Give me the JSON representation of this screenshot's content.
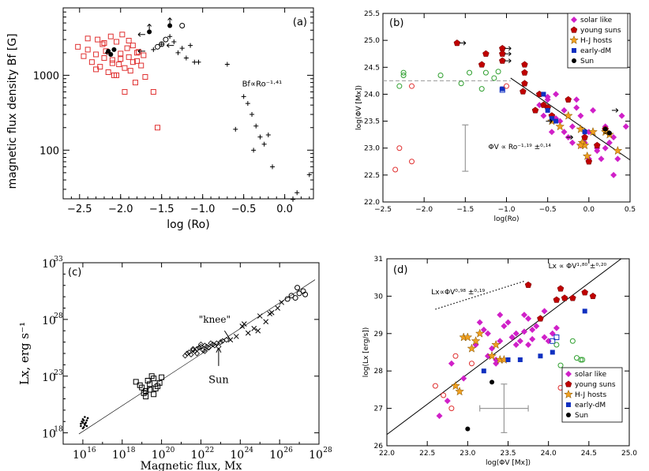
{
  "colors": {
    "red": "#e03030",
    "green": "#30a030",
    "magenta": "#d020c8",
    "darkred": "#c00000",
    "orange": "#f0a020",
    "blue": "#1030c0",
    "black": "#000000",
    "gray": "#999999"
  },
  "chart_data": [
    {
      "id": "a",
      "type": "scatter",
      "panel_label": "(a)",
      "xlabel": "log (Ro)",
      "ylabel": "magnetic flux density  Bf  [G]",
      "xlim": [
        -2.7,
        0.35
      ],
      "ylim_log": [
        1.35,
        3.9
      ],
      "xticks": [
        -2.5,
        -2.0,
        -1.5,
        -1.0,
        -0.5,
        0.0
      ],
      "xtick_labels": [
        "−2.5",
        "−2.0",
        "−1.5",
        "−1.0",
        "−0.5",
        "0.0"
      ],
      "yticks": [
        100,
        1000
      ],
      "ytick_labels": [
        "100",
        "1000"
      ],
      "annotation": "Bf∝Ro⁻¹·⁴¹",
      "series": [
        {
          "name": "red squares",
          "marker": "square-open",
          "color": "red",
          "x": [
            -2.52,
            -2.45,
            -2.4,
            -2.35,
            -2.3,
            -2.28,
            -2.25,
            -2.22,
            -2.2,
            -2.18,
            -2.15,
            -2.12,
            -2.1,
            -2.08,
            -2.05,
            -2.02,
            -2.0,
            -1.98,
            -1.95,
            -1.92,
            -1.9,
            -1.88,
            -1.85,
            -1.82,
            -1.8,
            -1.78,
            -1.75,
            -1.72,
            -1.7,
            -2.4,
            -2.3,
            -2.2,
            -2.1,
            -2.0,
            -1.9,
            -1.8,
            -1.6,
            -1.55,
            -1.95,
            -2.05,
            -1.85
          ],
          "y": [
            2400,
            1800,
            2200,
            1500,
            1900,
            3000,
            1300,
            2600,
            1700,
            2100,
            1100,
            3300,
            1600,
            1000,
            2800,
            1400,
            1950,
            3500,
            1250,
            2300,
            1750,
            1150,
            2500,
            800,
            1550,
            2050,
            1350,
            1850,
            950,
            3100,
            1200,
            2700,
            1450,
            1650,
            2900,
            2000,
            600,
            200,
            600,
            1000,
            1500
          ]
        },
        {
          "name": "black dots",
          "marker": "dot",
          "color": "black",
          "x": [
            -2.15,
            -2.12,
            -2.08,
            -1.65,
            -1.4
          ],
          "y": [
            2100,
            1900,
            2200,
            3800,
            4600
          ]
        },
        {
          "name": "open circles",
          "marker": "circle-open",
          "color": "black",
          "x": [
            -1.55,
            -1.45,
            -1.25,
            -1.5
          ],
          "y": [
            2400,
            3000,
            4600,
            2600
          ]
        },
        {
          "name": "plus",
          "marker": "plus",
          "color": "black",
          "x": [
            -1.6,
            -1.5,
            -1.4,
            -1.35,
            -1.3,
            -1.25,
            -1.2,
            -1.15,
            -1.1,
            -1.05,
            -0.7,
            -0.5,
            -0.45,
            -0.4,
            -0.35,
            -0.3,
            -0.25,
            -0.2,
            -0.15,
            0.1,
            0.15,
            0.3,
            -0.6,
            -0.38
          ],
          "y": [
            2200,
            2600,
            3300,
            2800,
            2000,
            2300,
            1700,
            2500,
            1500,
            1500,
            1400,
            520,
            420,
            300,
            210,
            150,
            120,
            160,
            60,
            22,
            27,
            47,
            190,
            100
          ]
        }
      ]
    },
    {
      "id": "b",
      "type": "scatter",
      "panel_label": "(b)",
      "xlabel": "log(Ro)",
      "ylabel": "log(ΦV [Mx])",
      "xlim": [
        -2.5,
        0.5
      ],
      "ylim": [
        22.0,
        25.5
      ],
      "xticks": [
        -2.5,
        -2.0,
        -1.5,
        -1.0,
        -0.5,
        0.0,
        0.5
      ],
      "xtick_labels": [
        "−2.5",
        "−2.0",
        "−1.5",
        "−1.0",
        "−0.5",
        "0.0",
        "0.5"
      ],
      "yticks": [
        22.0,
        22.5,
        23.0,
        23.5,
        24.0,
        24.5,
        25.0,
        25.5
      ],
      "ytick_labels": [
        "22.0",
        "22.5",
        "23.0",
        "23.5",
        "24.0",
        "24.5",
        "25.0",
        "25.5"
      ],
      "annotation": "ΦV ∝ Ro⁻¹·¹⁹ ±⁰·¹⁴",
      "legend": [
        "solar like",
        "young suns",
        "H-J hosts",
        "early-dM",
        "Sun"
      ],
      "saturation_level": 24.25,
      "fit_line": {
        "x": [
          -0.95,
          0.5
        ],
        "y": [
          24.3,
          22.78
        ]
      },
      "error_bar": {
        "x": -1.5,
        "y_low": 22.57,
        "y_high": 23.43
      },
      "series": [
        {
          "name": "solar like",
          "marker": "diamond",
          "color": "magenta",
          "x": [
            -0.6,
            -0.55,
            -0.5,
            -0.45,
            -0.4,
            -0.35,
            -0.3,
            -0.25,
            -0.2,
            -0.15,
            -0.1,
            -0.05,
            0.0,
            0.05,
            0.1,
            0.15,
            0.2,
            0.25,
            0.3,
            0.35,
            0.4,
            0.45,
            -0.5,
            -0.3,
            -0.1,
            0.1,
            0.3,
            -0.2,
            0.0,
            0.2,
            -0.4,
            -0.15
          ],
          "y": [
            23.8,
            23.6,
            23.9,
            23.3,
            24.0,
            23.5,
            23.7,
            23.2,
            23.4,
            23.9,
            23.6,
            23.1,
            23.3,
            23.7,
            23.0,
            22.8,
            23.4,
            23.1,
            23.2,
            22.8,
            23.6,
            23.4,
            23.95,
            23.3,
            23.05,
            22.95,
            22.5,
            23.1,
            22.8,
            23.0,
            23.55,
            23.75
          ]
        },
        {
          "name": "young suns",
          "marker": "pentagon",
          "color": "darkred",
          "x": [
            -1.6,
            -1.25,
            -1.05,
            -1.05,
            -1.05,
            -0.78,
            -0.78,
            -0.78,
            -0.6,
            -0.55,
            -0.5,
            -0.45,
            0.2,
            0.1,
            -0.25,
            -0.05,
            -1.3,
            -0.8,
            -0.65,
            0.0
          ],
          "y": [
            24.95,
            24.75,
            24.85,
            24.75,
            24.62,
            24.55,
            24.4,
            24.2,
            24.0,
            23.8,
            23.75,
            23.6,
            23.35,
            23.05,
            23.9,
            23.2,
            24.55,
            24.05,
            23.7,
            22.75
          ]
        },
        {
          "name": "H-J hosts",
          "marker": "star",
          "color": "orange",
          "x": [
            -0.45,
            -0.35,
            -0.1,
            -0.08,
            -0.05,
            -0.02,
            0.05,
            0.2,
            0.25,
            0.35,
            -0.25,
            -0.1
          ],
          "y": [
            23.5,
            23.4,
            23.35,
            23.1,
            23.05,
            22.85,
            23.3,
            23.3,
            23.25,
            22.95,
            23.6,
            23.05
          ]
        },
        {
          "name": "early-dM",
          "marker": "square",
          "color": "blue",
          "x": [
            -1.05,
            -0.55,
            -0.5,
            -0.45,
            -0.4,
            -0.05
          ],
          "y": [
            24.1,
            24.0,
            23.7,
            23.55,
            23.5,
            23.3
          ]
        },
        {
          "name": "early-dM open",
          "marker": "square-open",
          "color": "blue",
          "x": [
            -1.05
          ],
          "y": [
            24.08
          ]
        },
        {
          "name": "Sun",
          "marker": "dot",
          "color": "black",
          "x": [
            0.2,
            0.25
          ],
          "y": [
            23.35,
            23.28
          ]
        },
        {
          "name": "green circles",
          "marker": "circle-open",
          "color": "green",
          "x": [
            -2.3,
            -2.25,
            -2.25,
            -1.8,
            -1.55,
            -1.45,
            -1.25,
            -1.15,
            -1.3,
            -1.1
          ],
          "y": [
            24.15,
            24.4,
            24.35,
            24.35,
            24.2,
            24.4,
            24.4,
            24.3,
            24.1,
            24.42
          ]
        },
        {
          "name": "red circles",
          "marker": "circle-open",
          "color": "red",
          "x": [
            -2.35,
            -2.3,
            -2.15,
            -2.15,
            -1.0
          ],
          "y": [
            22.6,
            23.0,
            22.75,
            24.15,
            24.15
          ]
        }
      ]
    },
    {
      "id": "c",
      "type": "scatter",
      "panel_label": "(c)",
      "xlabel": "Magnetic flux, Mx",
      "ylabel": "Lx, erg s⁻¹",
      "xlim_log": [
        15,
        28
      ],
      "ylim_log": [
        17,
        33
      ],
      "xticks_log": [
        16,
        18,
        20,
        22,
        24,
        26,
        28
      ],
      "yticks_log": [
        18,
        23,
        28,
        33
      ],
      "tick_base": "10",
      "annotations": [
        "\"knee\"",
        "Sun"
      ],
      "fit_line": {
        "x_log": [
          15.8,
          27.8
        ],
        "y_log": [
          17.9,
          31.5
        ]
      },
      "series": [
        {
          "name": "dots cluster",
          "marker": "dot-small",
          "color": "black",
          "x_log": [
            15.9,
            16.0,
            16.1,
            16.2,
            16.0,
            16.1,
            15.95,
            16.05,
            16.15,
            16.25,
            16.0,
            16.1,
            16.2,
            16.05,
            15.9
          ],
          "y_log": [
            18.6,
            18.9,
            18.8,
            19.1,
            19.2,
            18.7,
            19.0,
            18.5,
            18.9,
            19.3,
            18.4,
            19.4,
            18.6,
            19.1,
            18.8
          ]
        },
        {
          "name": "squares",
          "marker": "square-open",
          "color": "black",
          "x_log": [
            18.7,
            19.0,
            19.2,
            19.4,
            19.6,
            19.8,
            20.0,
            19.1,
            19.3,
            19.5,
            19.7,
            19.9,
            19.2,
            19.4,
            18.9,
            19.6
          ],
          "y_log": [
            22.5,
            22.0,
            21.7,
            22.3,
            22.8,
            22.1,
            22.9,
            21.5,
            22.6,
            23.0,
            21.9,
            22.4,
            21.2,
            21.8,
            22.2,
            21.4
          ]
        },
        {
          "name": "diamonds",
          "marker": "diamond-open",
          "color": "black",
          "x_log": [
            21.2,
            21.4,
            21.6,
            21.8,
            22.0,
            22.2,
            22.4,
            22.6,
            22.8,
            23.0,
            21.5,
            21.7,
            21.9,
            22.1,
            22.3,
            22.5,
            22.7,
            22.9,
            23.1,
            23.3,
            21.3,
            21.6,
            21.8,
            22.0,
            22.2
          ],
          "y_log": [
            24.8,
            25.1,
            25.3,
            25.4,
            25.6,
            25.7,
            25.5,
            25.8,
            25.9,
            26.0,
            24.9,
            25.2,
            25.5,
            25.3,
            25.6,
            25.9,
            25.7,
            25.6,
            26.1,
            26.2,
            25.0,
            25.4,
            25.0,
            25.8,
            25.2
          ]
        },
        {
          "name": "crosses",
          "marker": "x",
          "color": "black",
          "x_log": [
            23.5,
            23.8,
            24.1,
            24.4,
            24.7,
            25.0,
            25.3,
            25.6,
            25.9,
            26.1,
            24.2,
            24.9,
            25.5
          ],
          "y_log": [
            26.2,
            26.5,
            27.4,
            26.8,
            27.2,
            28.3,
            27.8,
            28.6,
            29.0,
            29.5,
            27.6,
            27.0,
            28.5
          ]
        },
        {
          "name": "circles",
          "marker": "circle-open",
          "color": "black",
          "x_log": [
            26.4,
            26.6,
            26.8,
            27.0,
            27.2,
            27.3,
            26.9
          ],
          "y_log": [
            29.8,
            30.1,
            29.9,
            30.3,
            30.5,
            30.2,
            30.8
          ]
        }
      ]
    },
    {
      "id": "d",
      "type": "scatter",
      "panel_label": "(d)",
      "xlabel": "log(ΦV [Mx])",
      "ylabel": "log(Lx [erg/s])",
      "xlim": [
        22.0,
        25.0
      ],
      "ylim": [
        26.0,
        31.0
      ],
      "xticks": [
        22.0,
        22.5,
        23.0,
        23.5,
        24.0,
        24.5,
        25.0
      ],
      "xtick_labels": [
        "22.0",
        "22.5",
        "23.0",
        "23.5",
        "24.0",
        "24.5",
        "25.0"
      ],
      "yticks": [
        26,
        27,
        28,
        29,
        30,
        31
      ],
      "ytick_labels": [
        "26",
        "27",
        "28",
        "29",
        "30",
        "31"
      ],
      "annotations": [
        "Lx ∝ ΦV¹·⁸⁰ ±⁰·²⁰",
        "Lx∝ΦV⁰·⁹⁸ ±⁰·¹⁹"
      ],
      "legend": [
        "solar like",
        "young suns",
        "H-J hosts",
        "early-dM",
        "Sun"
      ],
      "fit_line": {
        "x": [
          22.0,
          24.9
        ],
        "y": [
          26.3,
          31.0
        ]
      },
      "dotted_line": {
        "x": [
          22.6,
          23.7
        ],
        "y": [
          29.65,
          30.4
        ]
      },
      "error_bar": {
        "x": 23.45,
        "y": 27.0,
        "x_low": 23.15,
        "x_high": 23.75,
        "y_low": 26.35,
        "y_high": 27.65
      },
      "series": [
        {
          "name": "solar like",
          "marker": "diamond",
          "color": "magenta",
          "x": [
            22.65,
            22.75,
            22.8,
            22.95,
            23.1,
            23.2,
            23.25,
            23.3,
            23.35,
            23.4,
            23.45,
            23.5,
            23.55,
            23.6,
            23.65,
            23.7,
            23.75,
            23.8,
            23.85,
            23.9,
            23.95,
            24.0,
            24.05,
            23.15,
            23.35,
            23.55,
            23.75,
            23.95,
            23.4,
            23.6,
            23.8,
            24.1,
            23.25,
            23.7
          ],
          "y": [
            26.8,
            27.2,
            28.2,
            27.8,
            28.7,
            29.1,
            29.0,
            28.6,
            28.3,
            28.8,
            29.2,
            29.3,
            28.9,
            29.0,
            28.8,
            29.5,
            28.7,
            29.1,
            29.2,
            29.4,
            28.9,
            28.8,
            29.0,
            29.3,
            28.2,
            28.9,
            29.4,
            29.6,
            29.5,
            28.7,
            28.85,
            29.15,
            28.4,
            29.05
          ]
        },
        {
          "name": "young suns",
          "marker": "pentagon",
          "color": "darkred",
          "x": [
            23.75,
            24.1,
            24.15,
            24.2,
            24.3,
            24.45,
            24.55,
            23.9
          ],
          "y": [
            30.3,
            29.9,
            30.2,
            29.95,
            29.95,
            30.1,
            30.0,
            29.4
          ]
        },
        {
          "name": "H-J hosts",
          "marker": "star",
          "color": "orange",
          "x": [
            22.85,
            22.9,
            22.95,
            23.0,
            23.05,
            23.1,
            23.15,
            23.3,
            23.35,
            23.4,
            23.45
          ],
          "y": [
            27.6,
            27.45,
            28.9,
            28.9,
            28.6,
            28.8,
            29.0,
            28.4,
            28.7,
            28.3,
            28.3
          ]
        },
        {
          "name": "early-dM",
          "marker": "square",
          "color": "blue",
          "x": [
            23.5,
            23.65,
            23.9,
            24.05,
            24.45,
            23.2
          ],
          "y": [
            28.3,
            28.3,
            28.4,
            28.5,
            29.6,
            28.0
          ]
        },
        {
          "name": "early-dM open",
          "marker": "square-open",
          "color": "blue",
          "x": [
            24.05,
            24.1
          ],
          "y": [
            28.8,
            28.9
          ]
        },
        {
          "name": "Sun",
          "marker": "dot",
          "color": "black",
          "x": [
            23.0,
            23.3
          ],
          "y": [
            26.45,
            27.7
          ]
        },
        {
          "name": "green circles",
          "marker": "circle-open",
          "color": "green",
          "x": [
            24.1,
            24.3,
            24.35,
            24.4,
            24.42,
            24.15
          ],
          "y": [
            28.7,
            28.8,
            28.35,
            28.3,
            28.3,
            28.15
          ]
        },
        {
          "name": "red circles",
          "marker": "circle-open",
          "color": "red",
          "x": [
            22.6,
            22.7,
            22.8,
            23.05,
            24.15,
            22.85
          ],
          "y": [
            27.6,
            27.35,
            27.0,
            28.2,
            27.55,
            28.4
          ]
        }
      ]
    }
  ]
}
